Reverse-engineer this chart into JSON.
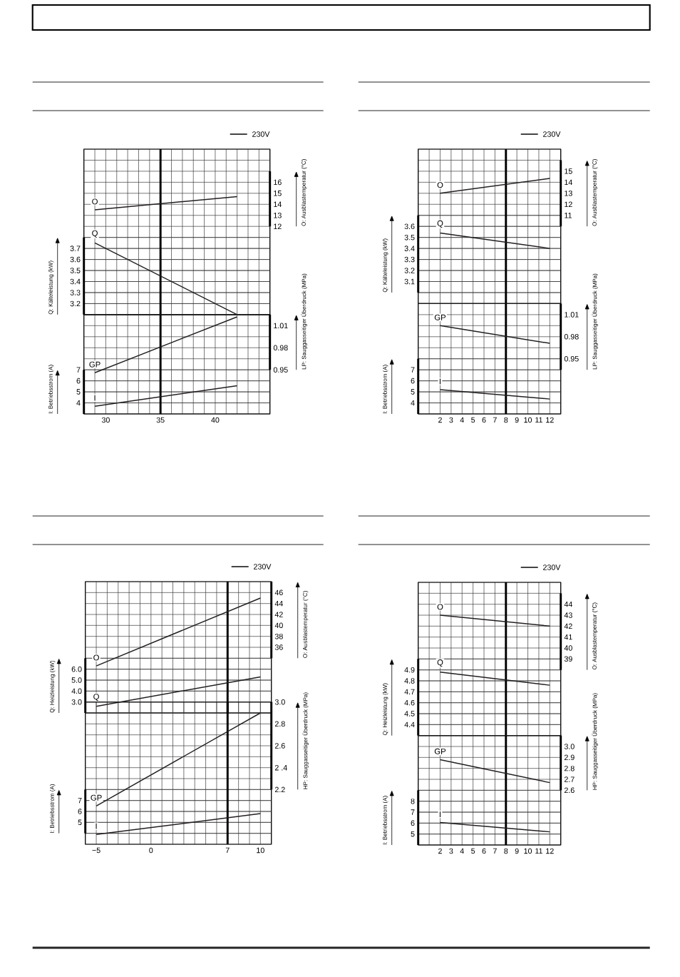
{
  "chart_data": [
    {
      "type": "line",
      "tick_labels": "y",
      "xlim": [
        28,
        45
      ],
      "xticks": [
        {
          "value": 28,
          "label": null
        },
        {
          "value": 29,
          "label": null
        },
        30,
        {
          "value": 31,
          "label": null
        },
        {
          "value": 32,
          "label": null
        },
        {
          "value": 33,
          "label": null
        },
        {
          "value": 34,
          "label": null
        },
        35,
        {
          "value": 36,
          "label": null
        },
        {
          "value": 37,
          "label": null
        },
        {
          "value": 38,
          "label": null
        },
        {
          "value": 39,
          "label": null
        },
        40,
        {
          "value": 41,
          "label": null
        },
        {
          "value": 42,
          "label": null
        },
        {
          "value": 43,
          "label": null
        },
        {
          "value": 44,
          "label": null
        },
        {
          "value": 45,
          "label": null
        }
      ],
      "ylabel": "Q: Kälteleistung (kW)",
      "ylim": [
        3.1,
        4.6
      ],
      "yticks": [
        {
          "value": 3.1,
          "label": null
        },
        3.2,
        3.3,
        3.4,
        3.5,
        3.6,
        3.7,
        {
          "value": 3.8,
          "label": null
        }
      ],
      "y2label": "O: Ausblastemperatur (°C)",
      "y2lim": [
        4,
        19
      ],
      "y2ticks": [
        12,
        13,
        14,
        15,
        16,
        {
          "value": 17,
          "label": null
        }
      ],
      "grid": true,
      "ref_lines": [
        {
          "axis": "x",
          "value": 35
        }
      ],
      "annotations": [
        "230V"
      ],
      "series": [
        {
          "name": "O",
          "axis": "y2",
          "color": "#231f20",
          "x": [
            29,
            42
          ],
          "values": [
            13.5,
            14.7
          ]
        },
        {
          "name": "Q",
          "axis": "y",
          "color": "#231f20",
          "x": [
            29,
            42
          ],
          "values": [
            3.75,
            3.1
          ]
        }
      ]
    },
    {
      "type": "line",
      "xlim": [
        28,
        45
      ],
      "xticks": [
        {
          "value": 28,
          "label": null
        },
        {
          "value": 29,
          "label": null
        },
        30,
        {
          "value": 31,
          "label": null
        },
        {
          "value": 32,
          "label": null
        },
        {
          "value": 33,
          "label": null
        },
        {
          "value": 34,
          "label": null
        },
        35,
        {
          "value": 36,
          "label": null
        },
        {
          "value": 37,
          "label": null
        },
        {
          "value": 38,
          "label": null
        },
        {
          "value": 39,
          "label": null
        },
        40,
        {
          "value": 41,
          "label": null
        },
        {
          "value": 42,
          "label": null
        },
        {
          "value": 43,
          "label": null
        },
        {
          "value": 44,
          "label": null
        },
        {
          "value": 45,
          "label": null
        }
      ],
      "ylabel": "I: Betriebsstrom (A)",
      "ylim": [
        3,
        12
      ],
      "yticks": [
        {
          "value": 3,
          "label": null
        },
        4,
        5,
        6,
        7
      ],
      "y2label": "LP: Sauggasseitiger Überdruck (MPa)",
      "y2lim": [
        0.89,
        1.025
      ],
      "y2ticks": [
        0.95,
        0.98,
        1.01,
        {
          "value": 1.025,
          "label": null
        }
      ],
      "grid": true,
      "ref_lines": [
        {
          "axis": "x",
          "value": 35
        }
      ],
      "series": [
        {
          "name": "GP",
          "axis": "y2",
          "color": "#231f20",
          "x": [
            29,
            42
          ],
          "values": [
            0.946,
            1.022
          ]
        },
        {
          "name": "I",
          "axis": "y",
          "color": "#231f20",
          "x": [
            29,
            42
          ],
          "values": [
            3.7,
            5.55
          ]
        }
      ]
    },
    {
      "type": "line",
      "tick_labels": "y",
      "xlim": [
        0,
        13
      ],
      "xticks": [
        {
          "value": 0,
          "label": null
        },
        {
          "value": 1,
          "label": null
        },
        2,
        3,
        4,
        5,
        6,
        7,
        8,
        9,
        10,
        11,
        12,
        {
          "value": 13,
          "label": null
        }
      ],
      "ylabel": "Q: Kälteleistung (kW)",
      "ylim": [
        2.9,
        4.3
      ],
      "yticks": [
        {
          "value": 3.0,
          "label": null
        },
        3.1,
        3.2,
        3.3,
        3.4,
        3.5,
        3.6,
        {
          "value": 3.7,
          "label": null
        }
      ],
      "y2label": "O: Ausblastemperatur (°C)",
      "y2lim": [
        3,
        17
      ],
      "y2ticks": [
        {
          "value": 10,
          "label": null
        },
        11,
        12,
        13,
        14,
        15,
        {
          "value": 16,
          "label": null
        }
      ],
      "grid": true,
      "ref_lines": [
        {
          "axis": "x",
          "value": 8
        }
      ],
      "annotations": [
        "230V"
      ],
      "series": [
        {
          "name": "O",
          "axis": "y2",
          "color": "#231f20",
          "x": [
            2,
            12
          ],
          "values": [
            13.0,
            14.35
          ]
        },
        {
          "name": "Q",
          "axis": "y",
          "color": "#231f20",
          "x": [
            2,
            12
          ],
          "values": [
            3.54,
            3.4
          ]
        }
      ]
    },
    {
      "type": "line",
      "xlim": [
        0,
        13
      ],
      "xticks": [
        {
          "value": 0,
          "label": null
        },
        {
          "value": 1,
          "label": null
        },
        2,
        3,
        4,
        5,
        6,
        7,
        8,
        9,
        10,
        11,
        12,
        {
          "value": 13,
          "label": null
        }
      ],
      "ylabel": "I: Betriebsstrom (A)",
      "ylim": [
        3,
        13
      ],
      "yticks": [
        {
          "value": 3,
          "label": null
        },
        4,
        5,
        6,
        7,
        {
          "value": 8,
          "label": null
        }
      ],
      "y2label": "LP: Sauggasseitiger Überdruck (MPa)",
      "y2lim": [
        0.875,
        1.025
      ],
      "y2ticks": [
        {
          "value": 0.935,
          "label": null
        },
        0.95,
        0.98,
        1.01,
        {
          "value": 1.025,
          "label": null
        }
      ],
      "grid": true,
      "ref_lines": [
        {
          "axis": "x",
          "value": 8
        }
      ],
      "series": [
        {
          "name": "GP",
          "axis": "y2",
          "color": "#231f20",
          "x": [
            2,
            12
          ],
          "values": [
            0.995,
            0.971
          ]
        },
        {
          "name": "I",
          "axis": "y",
          "color": "#231f20",
          "x": [
            2,
            12
          ],
          "values": [
            5.2,
            4.35
          ]
        }
      ]
    },
    {
      "type": "line",
      "tick_labels": "y",
      "xlim": [
        -6,
        11
      ],
      "xticks": [
        {
          "value": -6,
          "label": null
        },
        -5,
        {
          "value": -4,
          "label": null
        },
        {
          "value": -3,
          "label": null
        },
        {
          "value": -2,
          "label": null
        },
        {
          "value": -1,
          "label": null
        },
        0,
        {
          "value": 1,
          "label": null
        },
        {
          "value": 2,
          "label": null
        },
        {
          "value": 3,
          "label": null
        },
        {
          "value": 4,
          "label": null
        },
        {
          "value": 5,
          "label": null
        },
        {
          "value": 6,
          "label": null
        },
        7,
        {
          "value": 8,
          "label": null
        },
        {
          "value": 9,
          "label": null
        },
        10,
        {
          "value": 11,
          "label": null
        }
      ],
      "ylabel": "Q: Heizleistung (kW)",
      "ylim": [
        2,
        14
      ],
      "yticks": [
        {
          "value": 2,
          "label": null
        },
        {
          "value": 3,
          "label": "3.0"
        },
        {
          "value": 4,
          "label": "4.0"
        },
        {
          "value": 5,
          "label": "5.0"
        },
        {
          "value": 6,
          "label": "6.0"
        },
        {
          "value": 7,
          "label": null
        }
      ],
      "y2label": "O: Ausblastemperatur (°C)",
      "y2lim": [
        24,
        48
      ],
      "y2ticks": [
        {
          "value": 34,
          "label": null
        },
        36,
        38,
        40,
        42,
        44,
        46,
        {
          "value": 48,
          "label": null
        }
      ],
      "grid": true,
      "ref_lines": [
        {
          "axis": "x",
          "value": 7
        }
      ],
      "annotations": [
        "230V"
      ],
      "series": [
        {
          "name": "O",
          "axis": "y2",
          "color": "#231f20",
          "x": [
            -5,
            10
          ],
          "values": [
            32.6,
            45.0
          ]
        },
        {
          "name": "Q",
          "axis": "y",
          "color": "#231f20",
          "x": [
            -5,
            10
          ],
          "values": [
            2.6,
            5.3
          ]
        }
      ]
    },
    {
      "type": "line",
      "xlim": [
        -6,
        11
      ],
      "xticks": [
        {
          "value": -6,
          "label": null
        },
        {
          "value": -5,
          "label": "−5"
        },
        {
          "value": -4,
          "label": null
        },
        {
          "value": -3,
          "label": null
        },
        {
          "value": -2,
          "label": null
        },
        {
          "value": -1,
          "label": null
        },
        0,
        {
          "value": 1,
          "label": null
        },
        {
          "value": 2,
          "label": null
        },
        {
          "value": 3,
          "label": null
        },
        {
          "value": 4,
          "label": null
        },
        {
          "value": 5,
          "label": null
        },
        {
          "value": 6,
          "label": null
        },
        7,
        {
          "value": 8,
          "label": null
        },
        {
          "value": 9,
          "label": null
        },
        10,
        {
          "value": 11,
          "label": null
        }
      ],
      "ylabel": "I: Betriebsstrom (A)",
      "ylim": [
        3,
        16
      ],
      "yticks": [
        {
          "value": 4,
          "label": null
        },
        5,
        6,
        7,
        {
          "value": 8,
          "label": null
        }
      ],
      "y2label": "HP: Sauggasseitiger Überdruck (MPa)",
      "y2lim": [
        1.7,
        3.0
      ],
      "y2ticks": [
        2.2,
        {
          "value": 2.4,
          "label": "2 .4"
        },
        2.6,
        2.8,
        {
          "value": 3.0,
          "label": "3.0"
        }
      ],
      "grid": true,
      "ref_lines": [
        {
          "axis": "x",
          "value": 7
        }
      ],
      "series": [
        {
          "name": "GP",
          "axis": "y2",
          "color": "#231f20",
          "x": [
            -5,
            10
          ],
          "values": [
            2.05,
            2.9
          ]
        },
        {
          "name": "I",
          "axis": "y",
          "color": "#231f20",
          "x": [
            -5,
            10
          ],
          "values": [
            3.9,
            5.8
          ]
        }
      ]
    },
    {
      "type": "line",
      "tick_labels": "y",
      "xlim": [
        0,
        13
      ],
      "xticks": [
        {
          "value": 0,
          "label": null
        },
        {
          "value": 1,
          "label": null
        },
        2,
        3,
        4,
        5,
        6,
        7,
        8,
        9,
        10,
        11,
        12,
        {
          "value": 13,
          "label": null
        }
      ],
      "ylabel": "Q: Heizleistung (kW)",
      "ylim": [
        4.3,
        5.7
      ],
      "yticks": [
        {
          "value": 4.3,
          "label": null
        },
        4.4,
        4.5,
        4.6,
        4.7,
        4.8,
        4.9,
        {
          "value": 5.0,
          "label": null
        }
      ],
      "y2label": "O: Ausblastemperatur (°C)",
      "y2lim": [
        32,
        46
      ],
      "y2ticks": [
        {
          "value": 38,
          "label": null
        },
        39,
        40,
        41,
        42,
        43,
        44,
        {
          "value": 45,
          "label": null
        }
      ],
      "grid": true,
      "ref_lines": [
        {
          "axis": "x",
          "value": 8
        }
      ],
      "annotations": [
        "230V"
      ],
      "series": [
        {
          "name": "O",
          "axis": "y2",
          "color": "#231f20",
          "x": [
            2,
            12
          ],
          "values": [
            43.0,
            42.0
          ]
        },
        {
          "name": "Q",
          "axis": "y",
          "color": "#231f20",
          "x": [
            2,
            12
          ],
          "values": [
            4.88,
            4.76
          ]
        }
      ]
    },
    {
      "type": "line",
      "xlim": [
        0,
        13
      ],
      "xticks": [
        {
          "value": 0,
          "label": null
        },
        {
          "value": 1,
          "label": null
        },
        2,
        3,
        4,
        5,
        6,
        7,
        8,
        9,
        10,
        11,
        12,
        {
          "value": 13,
          "label": null
        }
      ],
      "ylabel": "I: Betriebsstrom (A)",
      "ylim": [
        4,
        14
      ],
      "yticks": [
        {
          "value": 4,
          "label": null
        },
        5,
        6,
        7,
        8,
        {
          "value": 9,
          "label": null
        }
      ],
      "y2label": "HP: Sauggasseitiger Überdruck (MPa)",
      "y2lim": [
        2.1,
        3.1
      ],
      "y2ticks": [
        2.6,
        2.7,
        2.8,
        2.9,
        {
          "value": 3.0,
          "label": "3.0"
        },
        {
          "value": 3.1,
          "label": null
        }
      ],
      "grid": true,
      "ref_lines": [
        {
          "axis": "x",
          "value": 8
        }
      ],
      "series": [
        {
          "name": "GP",
          "axis": "y2",
          "color": "#231f20",
          "x": [
            2,
            12
          ],
          "values": [
            2.88,
            2.67
          ]
        },
        {
          "name": "I",
          "axis": "y",
          "color": "#231f20",
          "x": [
            2,
            12
          ],
          "values": [
            6.05,
            5.2
          ]
        }
      ]
    }
  ]
}
